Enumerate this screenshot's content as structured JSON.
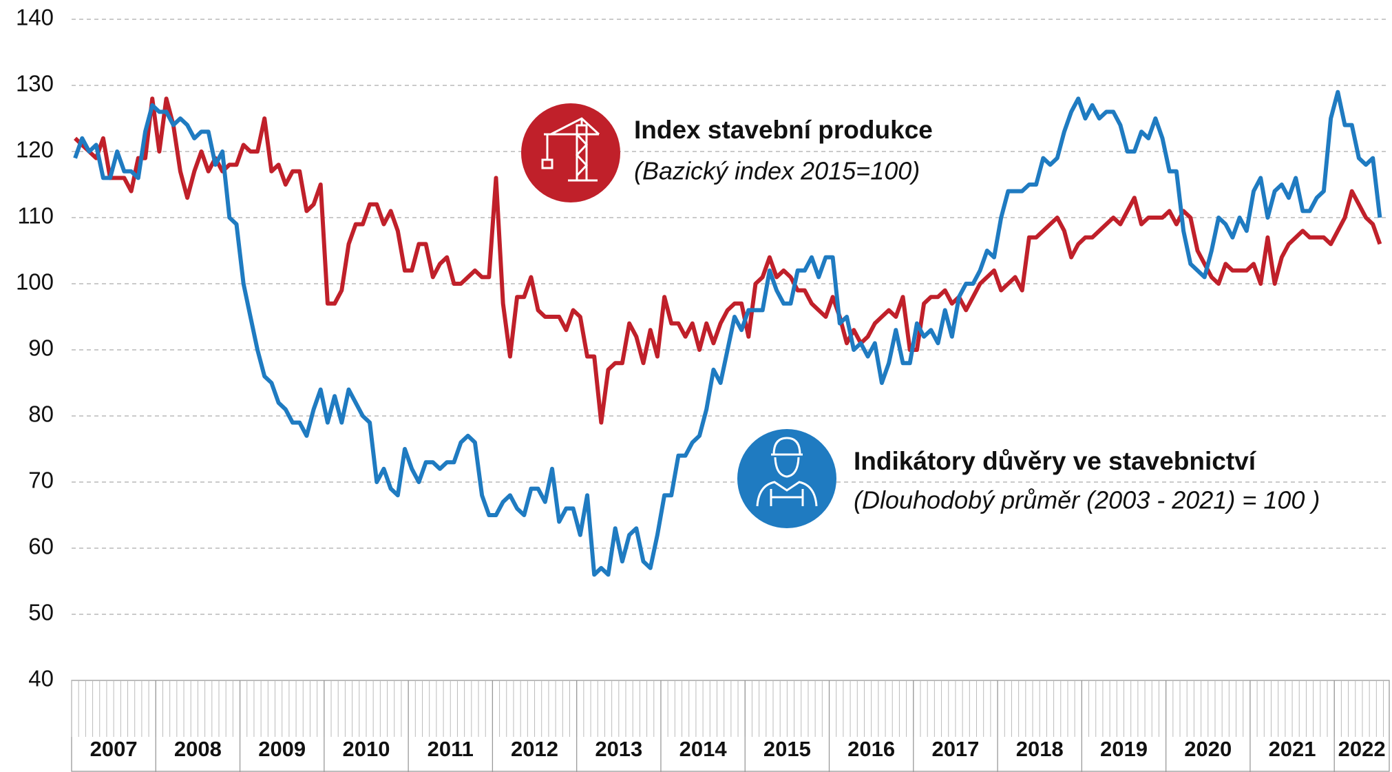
{
  "chart_data": {
    "type": "line",
    "categories": [
      "2007",
      null,
      null,
      null,
      null,
      null,
      null,
      null,
      null,
      null,
      null,
      null,
      "2008",
      null,
      null,
      null,
      null,
      null,
      null,
      null,
      null,
      null,
      null,
      null,
      "2009",
      null,
      null,
      null,
      null,
      null,
      null,
      null,
      null,
      null,
      null,
      null,
      "2010",
      null,
      null,
      null,
      null,
      null,
      null,
      null,
      null,
      null,
      null,
      null,
      "2011",
      null,
      null,
      null,
      null,
      null,
      null,
      null,
      null,
      null,
      null,
      null,
      "2012",
      null,
      null,
      null,
      null,
      null,
      null,
      null,
      null,
      null,
      null,
      null,
      "2013",
      null,
      null,
      null,
      null,
      null,
      null,
      null,
      null,
      null,
      null,
      null,
      "2014",
      null,
      null,
      null,
      null,
      null,
      null,
      null,
      null,
      null,
      null,
      null,
      "2015",
      null,
      null,
      null,
      null,
      null,
      null,
      null,
      null,
      null,
      null,
      null,
      "2016",
      null,
      null,
      null,
      null,
      null,
      null,
      null,
      null,
      null,
      null,
      null,
      "2017",
      null,
      null,
      null,
      null,
      null,
      null,
      null,
      null,
      null,
      null,
      null,
      "2018",
      null,
      null,
      null,
      null,
      null,
      null,
      null,
      null,
      null,
      null,
      null,
      "2019",
      null,
      null,
      null,
      null,
      null,
      null,
      null,
      null,
      null,
      null,
      null,
      "2020",
      null,
      null,
      null,
      null,
      null,
      null,
      null,
      null,
      null,
      null,
      null,
      "2021",
      null,
      null,
      null,
      null,
      null,
      null,
      null,
      null,
      null,
      null,
      null,
      "2022",
      null,
      null,
      null,
      null,
      null,
      null
    ],
    "series": [
      {
        "name": "Indikátory důvěry ve stavebnictví",
        "color": "#1f7bc1",
        "values": [
          119,
          122,
          120,
          121,
          116,
          116,
          120,
          117,
          117,
          116,
          123,
          127,
          126,
          126,
          124,
          125,
          124,
          122,
          123,
          123,
          118,
          120,
          110,
          109,
          100,
          95,
          90,
          86,
          85,
          82,
          81,
          79,
          79,
          77,
          81,
          84,
          79,
          83,
          79,
          84,
          82,
          80,
          79,
          70,
          72,
          69,
          68,
          75,
          72,
          70,
          73,
          73,
          72,
          73,
          73,
          76,
          77,
          76,
          68,
          65,
          65,
          67,
          68,
          66,
          65,
          69,
          69,
          67,
          72,
          64,
          66,
          66,
          62,
          68,
          56,
          57,
          56,
          63,
          58,
          62,
          63,
          58,
          57,
          62,
          68,
          68,
          74,
          74,
          76,
          77,
          81,
          87,
          85,
          90,
          95,
          93,
          96,
          96,
          96,
          102,
          99,
          97,
          97,
          102,
          102,
          104,
          101,
          104,
          104,
          94,
          95,
          90,
          91,
          89,
          91,
          85,
          88,
          93,
          88,
          88,
          94,
          92,
          93,
          91,
          96,
          92,
          98,
          100,
          100,
          102,
          105,
          104,
          110,
          114,
          114,
          114,
          115,
          115,
          119,
          118,
          119,
          123,
          126,
          128,
          125,
          127,
          125,
          126,
          126,
          124,
          120,
          120,
          123,
          122,
          125,
          122,
          117,
          117,
          108,
          103,
          102,
          101,
          105,
          110,
          109,
          107,
          110,
          108,
          114,
          116,
          110,
          114,
          115,
          113,
          116,
          111,
          111,
          113,
          114,
          125,
          129,
          124,
          124,
          119,
          118,
          119,
          110
        ]
      },
      {
        "name": "Index stavební produkce",
        "color": "#c0202a",
        "values": [
          122,
          121,
          120,
          119,
          122,
          116,
          116,
          116,
          114,
          119,
          119,
          128,
          120,
          128,
          124,
          117,
          113,
          117,
          120,
          117,
          119,
          117,
          118,
          118,
          121,
          120,
          120,
          125,
          117,
          118,
          115,
          117,
          117,
          111,
          112,
          115,
          97,
          97,
          99,
          106,
          109,
          109,
          112,
          112,
          109,
          111,
          108,
          102,
          102,
          106,
          106,
          101,
          103,
          104,
          100,
          100,
          101,
          102,
          101,
          101,
          116,
          97,
          89,
          98,
          98,
          101,
          96,
          95,
          95,
          95,
          93,
          96,
          95,
          89,
          89,
          79,
          87,
          88,
          88,
          94,
          92,
          88,
          93,
          89,
          98,
          94,
          94,
          92,
          94,
          90,
          94,
          91,
          94,
          96,
          97,
          97,
          92,
          100,
          101,
          104,
          101,
          102,
          101,
          99,
          99,
          97,
          96,
          95,
          98,
          95,
          91,
          93,
          91,
          92,
          94,
          95,
          96,
          95,
          98,
          90,
          90,
          97,
          98,
          98,
          99,
          97,
          98,
          96,
          98,
          100,
          101,
          102,
          99,
          100,
          101,
          99,
          107,
          107,
          108,
          109,
          110,
          108,
          104,
          106,
          107,
          107,
          108,
          109,
          110,
          109,
          111,
          113,
          109,
          110,
          110,
          110,
          111,
          109,
          111,
          110,
          105,
          103,
          101,
          100,
          103,
          102,
          102,
          102,
          103,
          100,
          107,
          100,
          104,
          106,
          107,
          108,
          107,
          107,
          107,
          106,
          108,
          110,
          114,
          112,
          110,
          109,
          106
        ]
      }
    ],
    "annotations": [
      "(Dlouhodobý průměr (2003 - 2021) = 100 )",
      "(Bazický index 2015=100)"
    ],
    "ylim": [
      40,
      140
    ],
    "yticks": [
      40,
      50,
      60,
      70,
      80,
      90,
      100,
      110,
      120,
      130,
      140
    ],
    "grid": true
  }
}
